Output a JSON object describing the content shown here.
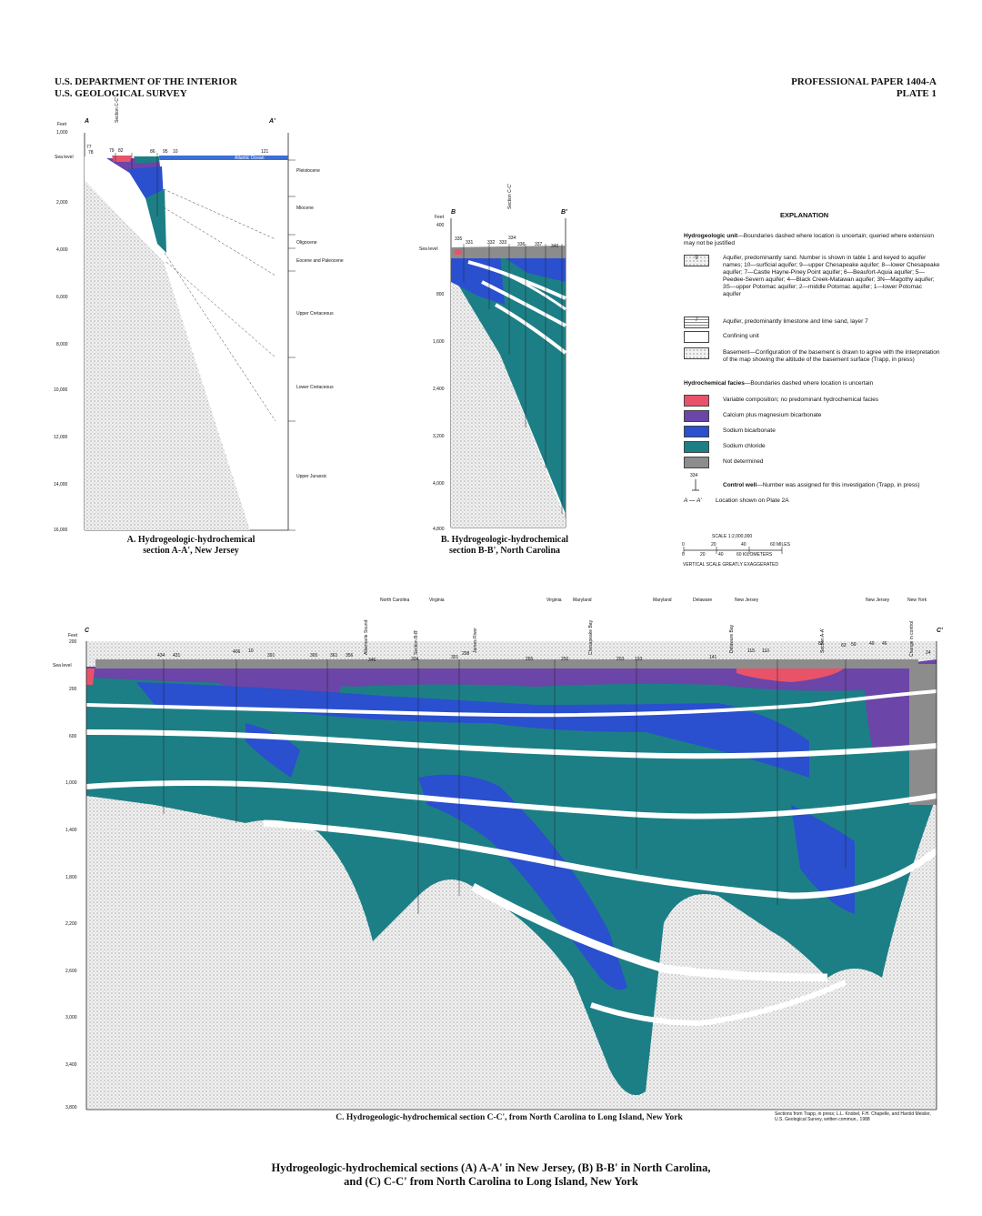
{
  "header": {
    "left_line1": "U.S. DEPARTMENT OF THE INTERIOR",
    "left_line2": "U.S. GEOLOGICAL SURVEY",
    "right_line1": "PROFESSIONAL PAPER 1404-A",
    "right_line2": "PLATE 1"
  },
  "sectionA": {
    "start": "A",
    "end": "A'",
    "axis_title": "Feet",
    "ticks": [
      "1,000",
      "Sea level",
      "2,000",
      "4,000",
      "6,000",
      "8,000",
      "10,000",
      "12,000",
      "14,000",
      "16,000"
    ],
    "wells": [
      "77",
      "78",
      "79",
      "82",
      "86",
      "95",
      "10",
      "121"
    ],
    "section_ref": "Section C-C'",
    "ocean_label": "Atlantic Ocean",
    "epochs": [
      "Pleistocene",
      "Miocene",
      "Oligocene",
      "Eocene and Paleocene",
      "Upper Cretaceous",
      "Lower Cretaceous",
      "Upper Jurassic"
    ],
    "caption_line1": "A. Hydrogeologic-hydrochemical",
    "caption_line2": "section A-A', New Jersey"
  },
  "sectionB": {
    "start": "B",
    "end": "B'",
    "axis_title": "Feet",
    "ticks": [
      "400",
      "Sea level",
      "800",
      "1,600",
      "2,400",
      "3,200",
      "4,000",
      "4,800"
    ],
    "wells": [
      "335",
      "331",
      "332",
      "333",
      "334",
      "336",
      "337",
      "340"
    ],
    "section_ref": "Section C-C'",
    "caption_line1": "B. Hydrogeologic-hydrochemical",
    "caption_line2": "section B-B', North Carolina"
  },
  "explanation": {
    "title": "EXPLANATION",
    "unit_heading": "Hydrogeologic unit",
    "unit_heading_rest": "—Boundaries dashed where location is uncertain; queried where extension may not be justified",
    "aquifer_sand": "Aquifer, predominantly sand. Number is shown in table 1 and keyed to aquifer names; 10—surficial aquifer; 9—upper Chesapeake aquifer; 8—lower Chesapeake aquifer; 7—Castle Hayne-Piney Point aquifer; 6—Beaufort-Aquia aquifer; 5—Peedee-Severn aquifer; 4—Black Creek-Matawan aquifer; 3N—Magothy aquifer; 3S—upper Potomac aquifer; 2—middle Potomac aquifer; 1—lower Potomac aquifer",
    "aquifer_sand_symbol": "9",
    "aquifer_lime": "Aquifer, predominantly limestone and lime sand, layer 7",
    "aquifer_lime_symbol": "7",
    "confining": "Confining unit",
    "basement": "Basement—Configuration of the basement is drawn to agree with the interpretation of the map showing the altitude of the basement surface (Trapp, in press)",
    "facies_heading": "Hydrochemical facies",
    "facies_heading_rest": "—Boundaries dashed where location is uncertain",
    "facies": [
      {
        "label": "Variable composition; no predominant hydrochemical facies",
        "color": "#e8536a"
      },
      {
        "label": "Calcium plus magnesium bicarbonate",
        "color": "#6b45a8"
      },
      {
        "label": "Sodium bicarbonate",
        "color": "#2a4fcf"
      },
      {
        "label": "Sodium chloride",
        "color": "#1c7f86"
      },
      {
        "label": "Not determined",
        "color": "#8c8c8c"
      }
    ],
    "well_number": "334",
    "control_well": "Control well",
    "control_well_rest": "—Number was assigned for this investigation (Trapp, in press)",
    "location_symbol": "A — A'",
    "location_text": "Location shown on Plate 2A"
  },
  "scale": {
    "title": "SCALE 1:2,000,000",
    "miles_ticks": [
      "0",
      "20",
      "40",
      "60 MILES"
    ],
    "km_ticks": [
      "0",
      "20",
      "40",
      "60 KILOMETERS"
    ],
    "note": "VERTICAL SCALE GREATLY EXAGGERATED"
  },
  "sectionC": {
    "start": "C",
    "end": "C'",
    "axis_title": "Feet",
    "ticks": [
      "200",
      "Sea level",
      "200",
      "600",
      "1,000",
      "1,400",
      "1,800",
      "2,200",
      "2,600",
      "3,000",
      "3,400",
      "3,800"
    ],
    "states": [
      "North Carolina",
      "Virginia",
      "Virginia",
      "Maryland",
      "Maryland",
      "Delaware",
      "New Jersey",
      "New Jersey",
      "New York"
    ],
    "features": [
      "Albemarle Sound",
      "Section B-B'",
      "James River",
      "Chesapeake Bay",
      "Delaware Bay",
      "Section A-A'",
      "Change in control"
    ],
    "wells": [
      "434",
      "431",
      "406",
      "10",
      "391",
      "365",
      "361",
      "356",
      "346",
      "334",
      "301",
      "298",
      "265",
      "250",
      "203",
      "193",
      "141",
      "115",
      "110",
      "82",
      "63",
      "59",
      "49",
      "46",
      "24"
    ],
    "caption": "C. Hydrogeologic-hydrochemical section C-C', from North Carolina to Long Island, New York",
    "source_line1": "Sections from Trapp, in press; L.L. Knobel, F.H. Chapelle, and Harold Meisler,",
    "source_line2": "U.S. Geological Survey, written commun., 1988"
  },
  "main_title": {
    "line1": "Hydrogeologic-hydrochemical sections (A) A-A' in New Jersey, (B) B-B' in North Carolina,",
    "line2": "and (C) C-C' from North Carolina to Long Island, New York"
  },
  "colors": {
    "variable": "#e8536a",
    "camg": "#6b45a8",
    "nabicarb": "#2a4fcf",
    "nacl": "#1c7f86",
    "notdet": "#8c8c8c",
    "ocean": "#3a6fd8"
  }
}
